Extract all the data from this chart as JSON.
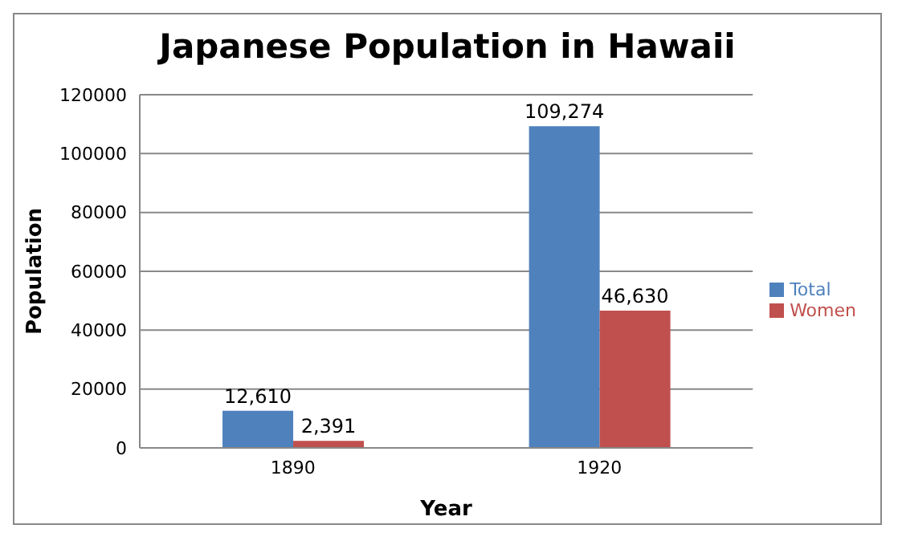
{
  "chart_data": {
    "type": "bar",
    "title": "Japanese Population in Hawaii",
    "xlabel": "Year",
    "ylabel": "Population",
    "categories": [
      "1890",
      "1920"
    ],
    "series": [
      {
        "name": "Total",
        "color": "#4f81bd",
        "values": [
          12610,
          109274
        ],
        "value_labels": [
          "12,610",
          "109,274"
        ]
      },
      {
        "name": "Women",
        "color": "#c0504d",
        "values": [
          2391,
          46630
        ],
        "value_labels": [
          "2,391",
          "46,630"
        ]
      }
    ],
    "ylim": [
      0,
      120000
    ],
    "yticks": [
      0,
      20000,
      40000,
      60000,
      80000,
      100000,
      120000
    ],
    "grid": "y",
    "legend": "right"
  }
}
